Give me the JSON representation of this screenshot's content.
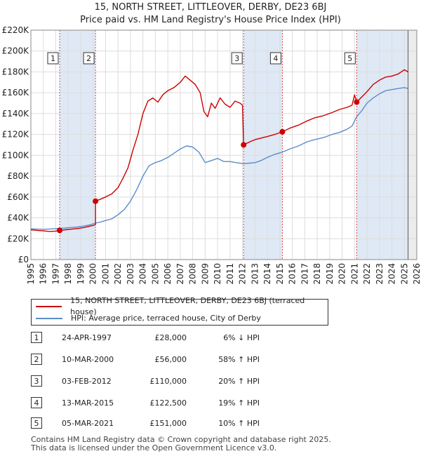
{
  "header": {
    "title_line1": "15, NORTH STREET, LITTLEOVER, DERBY, DE23 6BJ",
    "title_line2": "Price paid vs. HM Land Registry's House Price Index (HPI)"
  },
  "colors": {
    "property": "#cc0000",
    "hpi": "#5b8dc8",
    "band": "#dfe8f5",
    "marker": "#cc0000",
    "grid": "#dddddd"
  },
  "chart_data": {
    "type": "line",
    "xlim": [
      1995,
      2026
    ],
    "ylim": [
      0,
      220000
    ],
    "x_ticks": [
      1995,
      1996,
      1997,
      1998,
      1999,
      2000,
      2001,
      2002,
      2003,
      2004,
      2005,
      2006,
      2007,
      2008,
      2009,
      2010,
      2011,
      2012,
      2013,
      2014,
      2015,
      2016,
      2017,
      2018,
      2019,
      2020,
      2021,
      2022,
      2023,
      2024,
      2025,
      2026
    ],
    "y_ticks": [
      {
        "value": 0,
        "label": "£0"
      },
      {
        "value": 20000,
        "label": "£20K"
      },
      {
        "value": 40000,
        "label": "£40K"
      },
      {
        "value": 60000,
        "label": "£60K"
      },
      {
        "value": 80000,
        "label": "£80K"
      },
      {
        "value": 100000,
        "label": "£100K"
      },
      {
        "value": 120000,
        "label": "£120K"
      },
      {
        "value": 140000,
        "label": "£140K"
      },
      {
        "value": 160000,
        "label": "£160K"
      },
      {
        "value": 180000,
        "label": "£180K"
      },
      {
        "value": 200000,
        "label": "£200K"
      },
      {
        "value": 220000,
        "label": "£220K"
      }
    ],
    "shaded_bands": [
      {
        "from": 1997.31,
        "to": 2000.19
      },
      {
        "from": 2012.09,
        "to": 2015.2
      },
      {
        "from": 2021.17,
        "to": 2025.3
      }
    ],
    "future_start": 2025.3,
    "series": [
      {
        "name": "15, NORTH STREET, LITTLEOVER, DERBY, DE23 6BJ (terraced house)",
        "points": [
          [
            1995.0,
            28500
          ],
          [
            1995.5,
            28000
          ],
          [
            1996.0,
            27500
          ],
          [
            1996.5,
            27000
          ],
          [
            1997.0,
            27300
          ],
          [
            1997.31,
            28000
          ],
          [
            1997.8,
            28600
          ],
          [
            1998.3,
            29200
          ],
          [
            1998.8,
            29800
          ],
          [
            1999.3,
            30800
          ],
          [
            1999.8,
            32200
          ],
          [
            2000.1,
            33000
          ],
          [
            2000.19,
            33500
          ],
          [
            2000.19,
            56000
          ],
          [
            2000.6,
            58000
          ],
          [
            2001.0,
            60000
          ],
          [
            2001.5,
            63000
          ],
          [
            2002.0,
            69000
          ],
          [
            2002.4,
            78000
          ],
          [
            2002.8,
            88000
          ],
          [
            2003.2,
            105000
          ],
          [
            2003.6,
            120000
          ],
          [
            2004.0,
            140000
          ],
          [
            2004.4,
            152000
          ],
          [
            2004.8,
            155000
          ],
          [
            2005.2,
            151000
          ],
          [
            2005.6,
            158000
          ],
          [
            2006.0,
            162000
          ],
          [
            2006.5,
            165000
          ],
          [
            2007.0,
            170000
          ],
          [
            2007.4,
            176000
          ],
          [
            2007.8,
            172000
          ],
          [
            2008.2,
            168000
          ],
          [
            2008.6,
            160000
          ],
          [
            2008.9,
            142000
          ],
          [
            2009.2,
            137000
          ],
          [
            2009.5,
            150000
          ],
          [
            2009.8,
            145000
          ],
          [
            2010.2,
            155000
          ],
          [
            2010.6,
            149000
          ],
          [
            2011.0,
            146000
          ],
          [
            2011.4,
            152000
          ],
          [
            2011.8,
            150000
          ],
          [
            2012.0,
            148000
          ],
          [
            2012.09,
            110000
          ],
          [
            2012.6,
            113000
          ],
          [
            2013.0,
            115000
          ],
          [
            2013.5,
            116500
          ],
          [
            2014.0,
            118000
          ],
          [
            2014.6,
            120000
          ],
          [
            2015.2,
            122500
          ],
          [
            2015.8,
            126000
          ],
          [
            2016.5,
            129000
          ],
          [
            2017.2,
            133000
          ],
          [
            2017.8,
            136000
          ],
          [
            2018.5,
            138000
          ],
          [
            2019.2,
            141000
          ],
          [
            2019.8,
            144000
          ],
          [
            2020.4,
            146000
          ],
          [
            2020.8,
            148000
          ],
          [
            2021.0,
            158000
          ],
          [
            2021.17,
            151000
          ],
          [
            2021.5,
            155000
          ],
          [
            2022.0,
            161000
          ],
          [
            2022.5,
            168000
          ],
          [
            2023.0,
            172000
          ],
          [
            2023.5,
            175000
          ],
          [
            2024.0,
            176000
          ],
          [
            2024.5,
            178000
          ],
          [
            2025.0,
            182000
          ],
          [
            2025.3,
            180000
          ]
        ]
      },
      {
        "name": "HPI: Average price, terraced house, City of Derby",
        "points": [
          [
            1995.0,
            29500
          ],
          [
            1995.5,
            29200
          ],
          [
            1996.0,
            29000
          ],
          [
            1996.5,
            29300
          ],
          [
            1997.0,
            29700
          ],
          [
            1997.31,
            29800
          ],
          [
            1997.8,
            30300
          ],
          [
            1998.3,
            30800
          ],
          [
            1998.8,
            31300
          ],
          [
            1999.3,
            32200
          ],
          [
            1999.8,
            33500
          ],
          [
            2000.19,
            35000
          ],
          [
            2000.6,
            36000
          ],
          [
            2001.0,
            37500
          ],
          [
            2001.5,
            39000
          ],
          [
            2002.0,
            43000
          ],
          [
            2002.5,
            48000
          ],
          [
            2003.0,
            56000
          ],
          [
            2003.5,
            67000
          ],
          [
            2004.0,
            80000
          ],
          [
            2004.5,
            90000
          ],
          [
            2005.0,
            93000
          ],
          [
            2005.5,
            95000
          ],
          [
            2006.0,
            98000
          ],
          [
            2006.5,
            102000
          ],
          [
            2007.0,
            106000
          ],
          [
            2007.5,
            109000
          ],
          [
            2008.0,
            108000
          ],
          [
            2008.5,
            103000
          ],
          [
            2009.0,
            93000
          ],
          [
            2009.5,
            95000
          ],
          [
            2010.0,
            97000
          ],
          [
            2010.5,
            94000
          ],
          [
            2011.0,
            94000
          ],
          [
            2011.5,
            93000
          ],
          [
            2012.09,
            92000
          ],
          [
            2012.6,
            92500
          ],
          [
            2013.0,
            93000
          ],
          [
            2013.5,
            95000
          ],
          [
            2014.0,
            98000
          ],
          [
            2014.6,
            101000
          ],
          [
            2015.2,
            103000
          ],
          [
            2015.8,
            106000
          ],
          [
            2016.5,
            109000
          ],
          [
            2017.2,
            113000
          ],
          [
            2017.8,
            115000
          ],
          [
            2018.5,
            117000
          ],
          [
            2019.2,
            120000
          ],
          [
            2019.8,
            122000
          ],
          [
            2020.4,
            125000
          ],
          [
            2020.8,
            128000
          ],
          [
            2021.17,
            137000
          ],
          [
            2021.6,
            143000
          ],
          [
            2022.0,
            150000
          ],
          [
            2022.5,
            155000
          ],
          [
            2023.0,
            159000
          ],
          [
            2023.5,
            162000
          ],
          [
            2024.0,
            163000
          ],
          [
            2024.5,
            164000
          ],
          [
            2025.0,
            165000
          ],
          [
            2025.3,
            164000
          ]
        ]
      }
    ],
    "sales": [
      {
        "num": "1",
        "x": 1997.31,
        "y": 28000
      },
      {
        "num": "2",
        "x": 2000.19,
        "y": 56000
      },
      {
        "num": "3",
        "x": 2012.09,
        "y": 110000
      },
      {
        "num": "4",
        "x": 2015.2,
        "y": 122500
      },
      {
        "num": "5",
        "x": 2021.17,
        "y": 151000
      }
    ]
  },
  "legend": {
    "property_label": "15, NORTH STREET, LITTLEOVER, DERBY, DE23 6BJ (terraced house)",
    "hpi_label": "HPI: Average price, terraced house, City of Derby"
  },
  "transactions": [
    {
      "num": "1",
      "date": "24-APR-1997",
      "price": "£28,000",
      "hpi": "6% ↓ HPI"
    },
    {
      "num": "2",
      "date": "10-MAR-2000",
      "price": "£56,000",
      "hpi": "58% ↑ HPI"
    },
    {
      "num": "3",
      "date": "03-FEB-2012",
      "price": "£110,000",
      "hpi": "20% ↑ HPI"
    },
    {
      "num": "4",
      "date": "13-MAR-2015",
      "price": "£122,500",
      "hpi": "19% ↑ HPI"
    },
    {
      "num": "5",
      "date": "05-MAR-2021",
      "price": "£151,000",
      "hpi": "10% ↑ HPI"
    }
  ],
  "footer": {
    "line1": "Contains HM Land Registry data © Crown copyright and database right 2025.",
    "line2": "This data is licensed under the Open Government Licence v3.0."
  }
}
